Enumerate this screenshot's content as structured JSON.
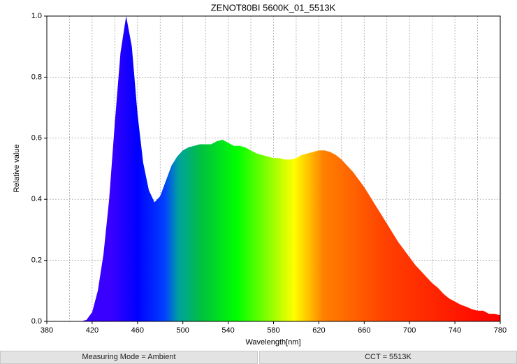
{
  "chart_data": {
    "type": "area",
    "title": "ZENOT80BI 5600K_01_5513K",
    "x_label": "Wavelength[nm]",
    "y_label": "Relative value",
    "x": [
      410,
      415,
      420,
      425,
      430,
      435,
      440,
      445,
      450,
      455,
      460,
      465,
      470,
      475,
      480,
      485,
      490,
      495,
      500,
      505,
      510,
      515,
      520,
      525,
      530,
      535,
      540,
      545,
      550,
      555,
      560,
      565,
      570,
      575,
      580,
      585,
      590,
      595,
      600,
      605,
      610,
      615,
      620,
      625,
      630,
      635,
      640,
      645,
      650,
      655,
      660,
      665,
      670,
      675,
      680,
      685,
      690,
      695,
      700,
      705,
      710,
      715,
      720,
      725,
      730,
      735,
      740,
      745,
      750,
      755,
      760,
      765,
      770,
      775,
      780
    ],
    "series": [
      {
        "values": [
          0,
          0.005,
          0.03,
          0.1,
          0.22,
          0.4,
          0.65,
          0.88,
          1.0,
          0.9,
          0.68,
          0.52,
          0.43,
          0.39,
          0.41,
          0.46,
          0.51,
          0.54,
          0.56,
          0.57,
          0.575,
          0.58,
          0.58,
          0.58,
          0.59,
          0.595,
          0.585,
          0.575,
          0.575,
          0.57,
          0.56,
          0.55,
          0.545,
          0.54,
          0.535,
          0.535,
          0.53,
          0.53,
          0.535,
          0.545,
          0.55,
          0.555,
          0.56,
          0.56,
          0.555,
          0.545,
          0.53,
          0.51,
          0.49,
          0.465,
          0.44,
          0.41,
          0.38,
          0.35,
          0.32,
          0.29,
          0.26,
          0.235,
          0.21,
          0.185,
          0.165,
          0.145,
          0.125,
          0.11,
          0.09,
          0.075,
          0.065,
          0.055,
          0.048,
          0.04,
          0.035,
          0.035,
          0.025,
          0.025,
          0.02
        ]
      }
    ],
    "xlim": [
      380,
      780
    ],
    "xticks": [
      380,
      420,
      460,
      500,
      540,
      580,
      620,
      660,
      700,
      740,
      780
    ],
    "x_minor_grid": [
      400,
      440,
      480,
      520,
      560,
      600,
      640,
      680,
      720,
      760
    ],
    "ylim": [
      0,
      1
    ],
    "yticks": [
      {
        "value": 0,
        "label": "0.0"
      },
      0.2,
      0.4,
      0.6,
      0.8,
      {
        "value": 1,
        "label": "1.0"
      }
    ],
    "grid": true
  },
  "status_bar": {
    "left": "Measuring Mode = Ambient",
    "right": "CCT = 5513K"
  }
}
